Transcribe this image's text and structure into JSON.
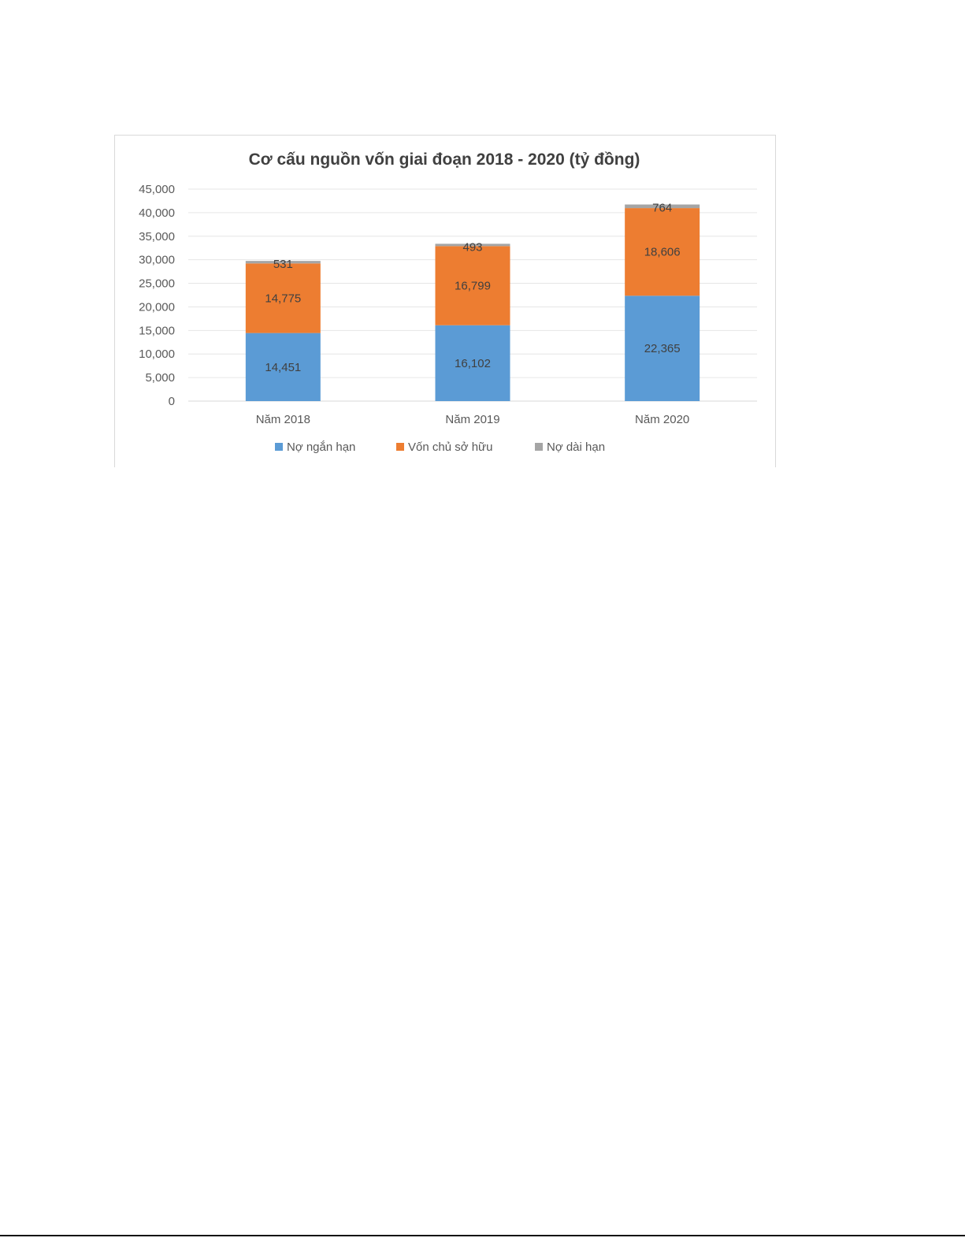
{
  "chart_data": {
    "type": "bar",
    "stacked": true,
    "title": "Cơ cấu nguồn vốn giai đoạn 2018 - 2020 (tỷ đồng)",
    "xlabel": "",
    "ylabel": "",
    "categories": [
      "Năm 2018",
      "Năm 2019",
      "Năm 2020"
    ],
    "series": [
      {
        "name": "Nợ ngắn hạn",
        "values": [
          14451,
          16102,
          22365
        ],
        "color": "#5B9BD5",
        "labels": [
          "14,451",
          "16,102",
          "22,365"
        ]
      },
      {
        "name": "Vốn chủ sở hữu",
        "values": [
          14775,
          16799,
          18606
        ],
        "color": "#ED7D31",
        "labels": [
          "14,775",
          "16,799",
          "18,606"
        ]
      },
      {
        "name": "Nợ dài hạn",
        "values": [
          531,
          493,
          764
        ],
        "color": "#A5A5A5",
        "labels": [
          "531",
          "493",
          "764"
        ]
      }
    ],
    "ylim": [
      0,
      45000
    ],
    "yticks": [
      0,
      5000,
      10000,
      15000,
      20000,
      25000,
      30000,
      35000,
      40000,
      45000
    ],
    "ytick_labels": [
      "0",
      "5,000",
      "10,000",
      "15,000",
      "20,000",
      "25,000",
      "30,000",
      "35,000",
      "40,000",
      "45,000"
    ],
    "grid": true,
    "legend_position": "bottom"
  }
}
